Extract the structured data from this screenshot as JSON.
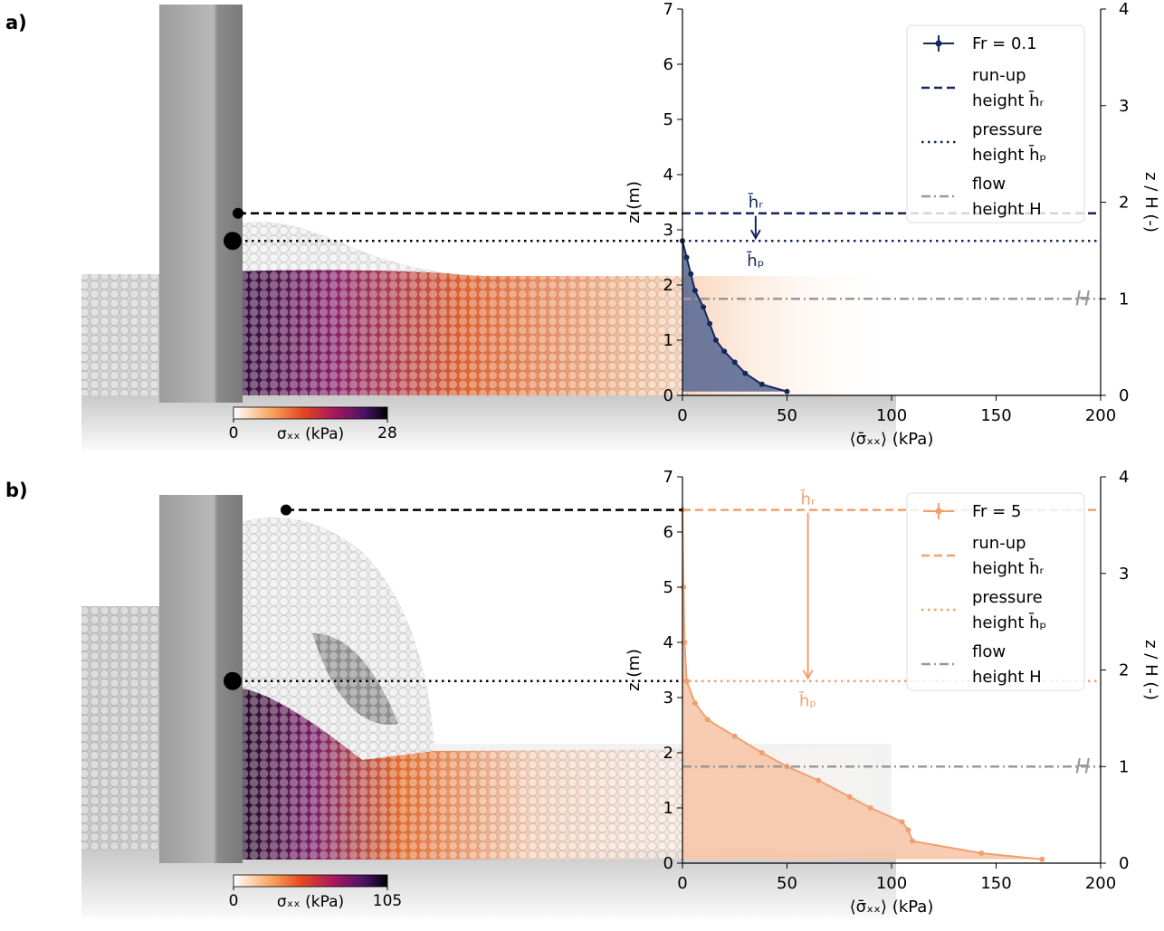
{
  "chart_data": [
    {
      "type": "line",
      "panel_label": "a)",
      "xlabel": "⟨σ̄ₓₓ⟩ (kPa)",
      "ylabel": "z (m)",
      "y2label": "z / H (-)",
      "xlim": [
        0,
        200
      ],
      "ylim": [
        0,
        7
      ],
      "y2lim": [
        0,
        4
      ],
      "xticks": [
        0,
        50,
        100,
        150,
        200
      ],
      "yticks": [
        0,
        1,
        2,
        3,
        4,
        5,
        6,
        7
      ],
      "y2ticks": [
        0,
        1,
        2,
        3,
        4
      ],
      "series": [
        {
          "name": "Fr = 0.1",
          "color": "#16285a",
          "fill": "#5d6d96",
          "x": [
            50,
            38,
            30,
            25,
            20,
            16,
            13,
            10,
            6,
            4,
            2,
            0
          ],
          "y": [
            0.07,
            0.2,
            0.4,
            0.6,
            0.8,
            1.0,
            1.3,
            1.6,
            1.9,
            2.2,
            2.5,
            2.8
          ]
        }
      ],
      "hlines": [
        {
          "name": [
            "run-up",
            "height h̄ᵣ"
          ],
          "value": 3.3,
          "style": "dashed",
          "color": "#16285a"
        },
        {
          "name": [
            "pressure",
            "height h̄ₚ"
          ],
          "value": 2.8,
          "style": "dotted",
          "color": "#16285a"
        },
        {
          "name": [
            "flow",
            "height H"
          ],
          "value": 1.75,
          "style": "dashdot",
          "color": "#999999"
        }
      ],
      "annotations": {
        "arrow_x": 35,
        "top_label": "h̄ᵣ",
        "bottom_label": "h̄ₚ",
        "flow_label": "H"
      },
      "colorbar": {
        "label": "σₓₓ (kPa)",
        "ticks": [
          0,
          28
        ]
      }
    },
    {
      "type": "line",
      "panel_label": "b)",
      "xlabel": "⟨σ̄ₓₓ⟩ (kPa)",
      "ylabel": "z (m)",
      "y2label": "z / H (-)",
      "xlim": [
        0,
        200
      ],
      "ylim": [
        0,
        7
      ],
      "y2lim": [
        0,
        4
      ],
      "xticks": [
        0,
        50,
        100,
        150,
        200
      ],
      "yticks": [
        0,
        1,
        2,
        3,
        4,
        5,
        6,
        7
      ],
      "y2ticks": [
        0,
        1,
        2,
        3,
        4
      ],
      "series": [
        {
          "name": "Fr = 5",
          "color": "#f0a070",
          "fill": "#f7c7aa",
          "x": [
            172,
            143,
            110,
            108,
            105,
            90,
            80,
            65,
            50,
            38,
            25,
            12,
            6,
            2,
            1,
            0.5,
            0
          ],
          "y": [
            0.07,
            0.18,
            0.4,
            0.6,
            0.75,
            1.0,
            1.2,
            1.5,
            1.75,
            2.0,
            2.3,
            2.6,
            2.9,
            3.3,
            4.0,
            5.0,
            6.4
          ]
        }
      ],
      "hlines": [
        {
          "name": [
            "run-up",
            "height h̄ᵣ"
          ],
          "value": 6.4,
          "style": "dashed",
          "color": "#f0a070"
        },
        {
          "name": [
            "pressure",
            "height h̄ₚ"
          ],
          "value": 3.3,
          "style": "dotted",
          "color": "#f0a070"
        },
        {
          "name": [
            "flow",
            "height H"
          ],
          "value": 1.75,
          "style": "dashdot",
          "color": "#999999"
        }
      ],
      "annotations": {
        "arrow_x": 60,
        "top_label": "h̄ᵣ",
        "bottom_label": "h̄ₚ",
        "flow_label": "H"
      },
      "colorbar": {
        "label": "σₓₓ (kPa)",
        "ticks": [
          0,
          105
        ]
      }
    }
  ]
}
